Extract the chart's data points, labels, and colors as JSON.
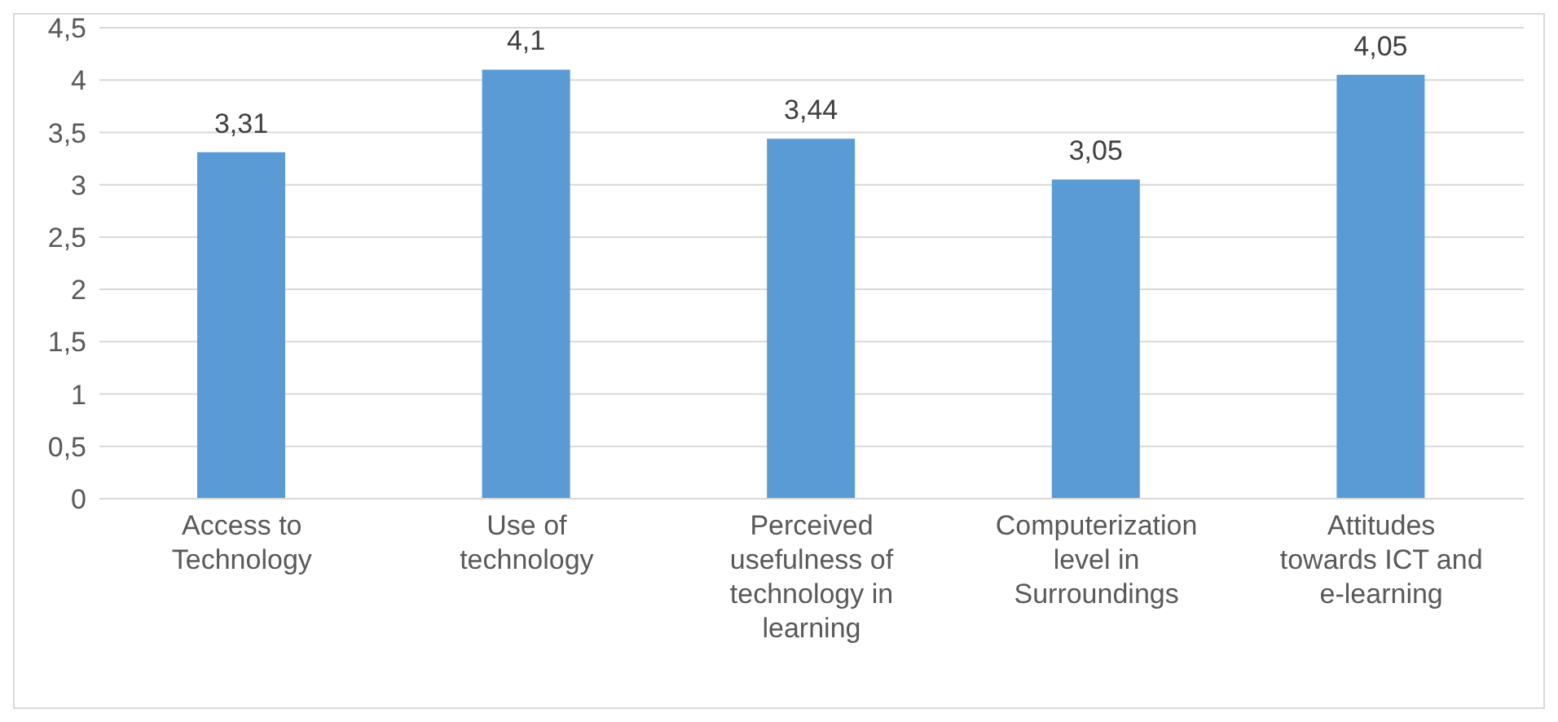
{
  "chart_data": {
    "type": "bar",
    "categories": [
      "Access to Technology",
      "Use of technology",
      "Perceived usefulness of technology in learning",
      "Computerization level in Surroundings",
      "Attitudes towards ICT and e-learning"
    ],
    "values": [
      3.31,
      4.1,
      3.44,
      3.05,
      4.05
    ],
    "value_labels": [
      "3,31",
      "4,1",
      "3,44",
      "3,05",
      "4,05"
    ],
    "color": "#5b9bd5",
    "ylim": [
      0,
      4.5
    ],
    "yticks": [
      {
        "value": 0,
        "label": "0"
      },
      {
        "value": 0.5,
        "label": "0,5"
      },
      {
        "value": 1,
        "label": "1"
      },
      {
        "value": 1.5,
        "label": "1,5"
      },
      {
        "value": 2,
        "label": "2"
      },
      {
        "value": 2.5,
        "label": "2,5"
      },
      {
        "value": 3,
        "label": "3"
      },
      {
        "value": 3.5,
        "label": "3,5"
      },
      {
        "value": 4,
        "label": "4"
      },
      {
        "value": 4.5,
        "label": "4,5"
      }
    ],
    "grid": "y",
    "legend": false
  }
}
